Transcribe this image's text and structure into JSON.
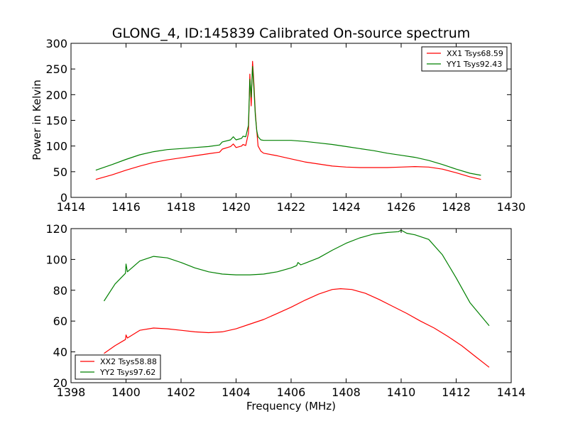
{
  "chart_data": [
    {
      "type": "line",
      "title": "GLONG_4, ID:145839 Calibrated On-source spectrum",
      "xlabel": "",
      "ylabel": "Power in Kelvin",
      "xlim": [
        1414,
        1430
      ],
      "ylim": [
        0,
        300
      ],
      "xticks": [
        1414,
        1416,
        1418,
        1420,
        1422,
        1424,
        1426,
        1428,
        1430
      ],
      "yticks": [
        0,
        50,
        100,
        150,
        200,
        250,
        300
      ],
      "legend_position": "top-right",
      "series": [
        {
          "name": "XX1 Tsys68.59",
          "color": "#ff0000",
          "x": [
            1414.9,
            1415.5,
            1416.0,
            1416.5,
            1417.0,
            1417.5,
            1418.0,
            1418.5,
            1419.0,
            1419.4,
            1419.5,
            1419.8,
            1419.9,
            1420.0,
            1420.2,
            1420.25,
            1420.35,
            1420.45,
            1420.5,
            1420.55,
            1420.6,
            1420.65,
            1420.7,
            1420.75,
            1420.8,
            1420.9,
            1421.0,
            1421.5,
            1422.0,
            1422.5,
            1423.0,
            1423.5,
            1424.0,
            1424.5,
            1425.0,
            1425.5,
            1426.0,
            1426.5,
            1427.0,
            1427.5,
            1428.0,
            1428.5,
            1428.9
          ],
          "values": [
            35,
            44,
            53,
            61,
            68,
            73,
            77,
            81,
            85,
            88,
            94,
            99,
            104,
            97,
            100,
            103,
            101,
            125,
            240,
            178,
            265,
            220,
            165,
            130,
            100,
            90,
            86,
            81,
            75,
            69,
            65,
            61,
            59,
            58,
            58,
            58,
            59,
            60,
            59,
            55,
            48,
            40,
            35
          ]
        },
        {
          "name": "YY1 Tsys92.43",
          "color": "#008000",
          "x": [
            1414.9,
            1415.5,
            1416.0,
            1416.5,
            1417.0,
            1417.5,
            1418.0,
            1418.5,
            1419.0,
            1419.4,
            1419.5,
            1419.8,
            1419.9,
            1420.0,
            1420.2,
            1420.25,
            1420.35,
            1420.45,
            1420.5,
            1420.55,
            1420.6,
            1420.65,
            1420.7,
            1420.75,
            1420.8,
            1420.9,
            1421.0,
            1421.5,
            1422.0,
            1422.5,
            1423.0,
            1423.5,
            1424.0,
            1424.5,
            1425.0,
            1425.5,
            1426.0,
            1426.5,
            1427.0,
            1427.5,
            1428.0,
            1428.5,
            1428.9
          ],
          "values": [
            53,
            64,
            74,
            83,
            89,
            93,
            95,
            97,
            99,
            102,
            108,
            112,
            118,
            112,
            115,
            119,
            118,
            140,
            230,
            195,
            255,
            210,
            160,
            130,
            118,
            112,
            111,
            111,
            111,
            109,
            106,
            103,
            99,
            95,
            91,
            86,
            82,
            78,
            72,
            64,
            55,
            47,
            43
          ]
        }
      ]
    },
    {
      "type": "line",
      "title": "",
      "xlabel": "Frequency (MHz)",
      "ylabel": "",
      "xlim": [
        1398,
        1414
      ],
      "ylim": [
        20,
        120
      ],
      "xticks": [
        1398,
        1400,
        1402,
        1404,
        1406,
        1408,
        1410,
        1412,
        1414
      ],
      "yticks": [
        20,
        40,
        60,
        80,
        100,
        120
      ],
      "legend_position": "bottom-left",
      "series": [
        {
          "name": "XX2 Tsys58.88",
          "color": "#ff0000",
          "x": [
            1399.2,
            1399.6,
            1399.98,
            1400.0,
            1400.05,
            1400.5,
            1401.0,
            1401.5,
            1402.0,
            1402.5,
            1403.0,
            1403.5,
            1404.0,
            1404.5,
            1405.0,
            1405.5,
            1406.0,
            1406.5,
            1407.0,
            1407.5,
            1407.8,
            1408.2,
            1408.7,
            1409.2,
            1409.7,
            1410.2,
            1410.7,
            1411.2,
            1411.7,
            1412.2,
            1412.7,
            1413.2
          ],
          "values": [
            39,
            44,
            48,
            51,
            49,
            54,
            55.5,
            55,
            54,
            53,
            52.5,
            53,
            55,
            58,
            61,
            65,
            69,
            73.5,
            77.5,
            80.5,
            81,
            80.5,
            78,
            74,
            69.5,
            65,
            60,
            55.5,
            50,
            44,
            37,
            30
          ]
        },
        {
          "name": "YY2 Tsys97.62",
          "color": "#008000",
          "x": [
            1399.2,
            1399.6,
            1399.98,
            1400.0,
            1400.05,
            1400.5,
            1401.0,
            1401.5,
            1402.0,
            1402.5,
            1403.0,
            1403.5,
            1404.0,
            1404.5,
            1405.0,
            1405.5,
            1406.0,
            1406.2,
            1406.25,
            1406.35,
            1406.5,
            1407.0,
            1407.5,
            1408.0,
            1408.5,
            1409.0,
            1409.5,
            1409.9,
            1410.0,
            1410.2,
            1410.5,
            1411.0,
            1411.5,
            1412.0,
            1412.5,
            1413.2
          ],
          "values": [
            73,
            84,
            91,
            97,
            92,
            99,
            102,
            101,
            98,
            94.5,
            92,
            90.5,
            90,
            90,
            90.5,
            92,
            94.5,
            96,
            98,
            96.5,
            97.5,
            101,
            106,
            110.5,
            114,
            116.5,
            117.5,
            118,
            119,
            117,
            116,
            113,
            103,
            88,
            72,
            57
          ]
        }
      ]
    }
  ]
}
